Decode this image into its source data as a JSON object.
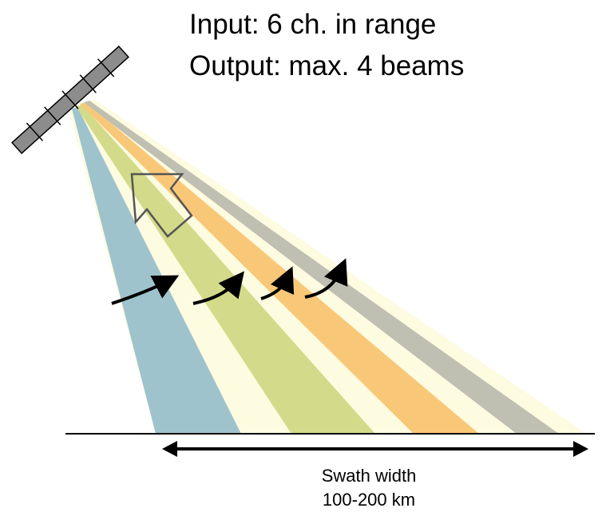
{
  "header": {
    "lines": [
      "Input: 6 ch. in range",
      "Output: max. 4 beams"
    ]
  },
  "swath": {
    "label": "Swath width",
    "range": "100-200 km"
  }
}
